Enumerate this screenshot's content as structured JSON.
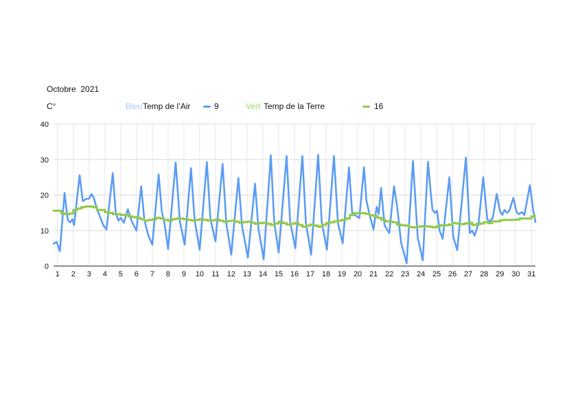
{
  "header": {
    "title": "Octobre  2021",
    "unit_label": "C°"
  },
  "legend": {
    "air": {
      "color_word": "Bleu",
      "label": "Temp de l’Air",
      "value": "9"
    },
    "terre": {
      "color_word": "Vert",
      "label": "Temp de la Terre",
      "value": "16"
    }
  },
  "colors": {
    "air_line": "#5b9cf3",
    "air_word": "#a7c9f5",
    "terre_line": "#93ca50",
    "terre_word": "#9edd66",
    "grid_horizontal": "#d9d9d9",
    "grid_vertical": "#e6e6e6",
    "axis_line": "#1a1a1a",
    "tick_text": "#111111",
    "background": "#ffffff"
  },
  "chart_data": {
    "type": "line",
    "title": "Octobre 2021",
    "xlabel": "",
    "ylabel": "C°",
    "grid": true,
    "legend_position": "top",
    "ylim": [
      0,
      40
    ],
    "y_ticks": [
      0,
      10,
      20,
      30,
      40
    ],
    "x_ticks": [
      1,
      2,
      3,
      4,
      5,
      6,
      7,
      8,
      9,
      10,
      11,
      12,
      13,
      14,
      15,
      16,
      17,
      18,
      19,
      20,
      21,
      22,
      23,
      24,
      25,
      26,
      27,
      28,
      29,
      30,
      31
    ],
    "x_domain": [
      0.75,
      31.25
    ],
    "series": [
      {
        "name": "Temp de l’Air",
        "color": "#5b9cf3",
        "width": 2.6,
        "mode": "linear",
        "points": [
          [
            0.75,
            6.3
          ],
          [
            0.95,
            6.8
          ],
          [
            1.15,
            4.2
          ],
          [
            1.45,
            20.6
          ],
          [
            1.65,
            13.0
          ],
          [
            1.8,
            12.3
          ],
          [
            1.95,
            13.2
          ],
          [
            2.05,
            11.5
          ],
          [
            2.4,
            25.6
          ],
          [
            2.6,
            18.3
          ],
          [
            2.8,
            18.9
          ],
          [
            3.0,
            19.0
          ],
          [
            3.15,
            20.3
          ],
          [
            3.3,
            19.2
          ],
          [
            3.5,
            16.0
          ],
          [
            3.7,
            13.8
          ],
          [
            3.9,
            11.5
          ],
          [
            4.1,
            10.3
          ],
          [
            4.5,
            26.2
          ],
          [
            4.68,
            15.2
          ],
          [
            4.85,
            12.8
          ],
          [
            5.0,
            13.6
          ],
          [
            5.2,
            12.2
          ],
          [
            5.45,
            16.0
          ],
          [
            5.7,
            12.6
          ],
          [
            6.0,
            10.0
          ],
          [
            6.3,
            22.5
          ],
          [
            6.5,
            13.0
          ],
          [
            6.75,
            8.6
          ],
          [
            7.0,
            6.0
          ],
          [
            7.4,
            25.8
          ],
          [
            7.6,
            15.4
          ],
          [
            7.78,
            11.8
          ],
          [
            8.0,
            4.8
          ],
          [
            8.48,
            29.2
          ],
          [
            8.75,
            12.5
          ],
          [
            9.05,
            6.0
          ],
          [
            9.45,
            27.6
          ],
          [
            9.68,
            13.0
          ],
          [
            10.0,
            4.6
          ],
          [
            10.45,
            29.3
          ],
          [
            10.68,
            13.2
          ],
          [
            11.0,
            7.0
          ],
          [
            11.45,
            28.8
          ],
          [
            11.68,
            12.2
          ],
          [
            12.0,
            3.2
          ],
          [
            12.45,
            24.8
          ],
          [
            12.68,
            11.2
          ],
          [
            13.05,
            2.4
          ],
          [
            13.5,
            23.2
          ],
          [
            13.72,
            10.5
          ],
          [
            14.05,
            1.9
          ],
          [
            14.5,
            31.2
          ],
          [
            14.72,
            12.3
          ],
          [
            15.0,
            3.8
          ],
          [
            15.5,
            31.0
          ],
          [
            15.72,
            12.6
          ],
          [
            16.05,
            5.0
          ],
          [
            16.5,
            31.0
          ],
          [
            16.72,
            12.2
          ],
          [
            17.05,
            3.2
          ],
          [
            17.5,
            31.4
          ],
          [
            17.72,
            12.6
          ],
          [
            18.05,
            4.6
          ],
          [
            18.5,
            31.0
          ],
          [
            18.75,
            12.2
          ],
          [
            19.05,
            6.4
          ],
          [
            19.45,
            27.8
          ],
          [
            19.65,
            15.0
          ],
          [
            19.85,
            14.3
          ],
          [
            20.1,
            13.5
          ],
          [
            20.4,
            27.8
          ],
          [
            20.55,
            18.6
          ],
          [
            20.75,
            14.5
          ],
          [
            21.0,
            10.3
          ],
          [
            21.2,
            16.7
          ],
          [
            21.33,
            14.7
          ],
          [
            21.48,
            22.0
          ],
          [
            21.7,
            11.5
          ],
          [
            22.0,
            9.3
          ],
          [
            22.3,
            22.5
          ],
          [
            22.5,
            16.6
          ],
          [
            22.75,
            6.5
          ],
          [
            23.1,
            0.8
          ],
          [
            23.5,
            29.6
          ],
          [
            23.8,
            8.0
          ],
          [
            24.12,
            1.6
          ],
          [
            24.45,
            29.4
          ],
          [
            24.6,
            21.8
          ],
          [
            24.73,
            16.0
          ],
          [
            24.88,
            15.0
          ],
          [
            25.02,
            15.6
          ],
          [
            25.18,
            10.0
          ],
          [
            25.38,
            7.7
          ],
          [
            25.8,
            25.0
          ],
          [
            26.05,
            8.2
          ],
          [
            26.3,
            4.5
          ],
          [
            26.85,
            30.6
          ],
          [
            27.1,
            9.3
          ],
          [
            27.25,
            10.0
          ],
          [
            27.4,
            8.6
          ],
          [
            27.65,
            12.0
          ],
          [
            27.95,
            25.0
          ],
          [
            28.2,
            13.2
          ],
          [
            28.35,
            12.5
          ],
          [
            28.55,
            13.6
          ],
          [
            28.8,
            20.3
          ],
          [
            29.0,
            15.6
          ],
          [
            29.15,
            14.4
          ],
          [
            29.3,
            15.8
          ],
          [
            29.45,
            15.0
          ],
          [
            29.6,
            15.6
          ],
          [
            29.85,
            19.2
          ],
          [
            30.05,
            15.3
          ],
          [
            30.2,
            14.6
          ],
          [
            30.4,
            15.2
          ],
          [
            30.55,
            14.4
          ],
          [
            30.9,
            22.8
          ],
          [
            31.1,
            16.0
          ],
          [
            31.25,
            12.4
          ]
        ]
      },
      {
        "name": "Temp de la Terre",
        "color": "#93ca50",
        "width": 3.2,
        "mode": "step",
        "points": [
          [
            0.75,
            15.6
          ],
          [
            1.0,
            15.6
          ],
          [
            1.25,
            14.8
          ],
          [
            1.5,
            14.6
          ],
          [
            1.75,
            14.8
          ],
          [
            2.0,
            15.8
          ],
          [
            2.25,
            16.2
          ],
          [
            2.5,
            16.6
          ],
          [
            2.75,
            16.8
          ],
          [
            3.0,
            16.8
          ],
          [
            3.25,
            16.6
          ],
          [
            3.5,
            15.8
          ],
          [
            3.75,
            15.8
          ],
          [
            4.0,
            15.2
          ],
          [
            4.25,
            15.0
          ],
          [
            4.5,
            14.6
          ],
          [
            4.75,
            14.6
          ],
          [
            5.0,
            14.4
          ],
          [
            5.25,
            14.4
          ],
          [
            5.5,
            14.0
          ],
          [
            5.75,
            13.8
          ],
          [
            6.0,
            13.6
          ],
          [
            6.25,
            13.2
          ],
          [
            6.5,
            12.8
          ],
          [
            6.75,
            13.0
          ],
          [
            7.0,
            13.2
          ],
          [
            7.25,
            13.6
          ],
          [
            7.5,
            13.4
          ],
          [
            7.75,
            13.0
          ],
          [
            8.0,
            12.8
          ],
          [
            8.25,
            13.2
          ],
          [
            8.5,
            13.4
          ],
          [
            8.75,
            13.4
          ],
          [
            9.0,
            13.2
          ],
          [
            9.25,
            13.0
          ],
          [
            9.5,
            12.8
          ],
          [
            9.75,
            13.0
          ],
          [
            10.0,
            13.2
          ],
          [
            10.25,
            13.0
          ],
          [
            10.5,
            12.8
          ],
          [
            10.75,
            12.9
          ],
          [
            11.0,
            13.1
          ],
          [
            11.25,
            12.8
          ],
          [
            11.5,
            12.5
          ],
          [
            11.75,
            12.7
          ],
          [
            12.0,
            12.8
          ],
          [
            12.25,
            12.5
          ],
          [
            12.5,
            12.2
          ],
          [
            12.75,
            12.4
          ],
          [
            13.0,
            12.5
          ],
          [
            13.25,
            12.2
          ],
          [
            13.5,
            11.9
          ],
          [
            13.75,
            12.1
          ],
          [
            14.0,
            12.2
          ],
          [
            14.25,
            11.9
          ],
          [
            14.5,
            11.6
          ],
          [
            14.75,
            12.0
          ],
          [
            15.0,
            12.5
          ],
          [
            15.25,
            12.1
          ],
          [
            15.5,
            11.7
          ],
          [
            15.75,
            11.9
          ],
          [
            16.0,
            12.1
          ],
          [
            16.25,
            11.6
          ],
          [
            16.5,
            11.1
          ],
          [
            16.75,
            11.4
          ],
          [
            17.0,
            11.7
          ],
          [
            17.25,
            11.4
          ],
          [
            17.5,
            11.1
          ],
          [
            17.75,
            11.6
          ],
          [
            18.0,
            12.1
          ],
          [
            18.25,
            12.3
          ],
          [
            18.5,
            12.6
          ],
          [
            18.75,
            12.8
          ],
          [
            19.0,
            13.0
          ],
          [
            19.25,
            13.4
          ],
          [
            19.5,
            14.4
          ],
          [
            19.75,
            14.9
          ],
          [
            20.0,
            14.9
          ],
          [
            20.25,
            14.9
          ],
          [
            20.5,
            14.7
          ],
          [
            20.75,
            14.3
          ],
          [
            21.0,
            14.1
          ],
          [
            21.25,
            13.6
          ],
          [
            21.5,
            13.0
          ],
          [
            21.75,
            12.6
          ],
          [
            22.0,
            12.5
          ],
          [
            22.25,
            12.3
          ],
          [
            22.5,
            11.7
          ],
          [
            22.75,
            11.5
          ],
          [
            23.0,
            11.4
          ],
          [
            23.25,
            11.0
          ],
          [
            23.5,
            10.9
          ],
          [
            23.75,
            11.1
          ],
          [
            24.0,
            11.2
          ],
          [
            24.25,
            11.2
          ],
          [
            24.5,
            11.1
          ],
          [
            24.75,
            10.9
          ],
          [
            25.0,
            11.3
          ],
          [
            25.25,
            11.5
          ],
          [
            25.5,
            11.5
          ],
          [
            25.75,
            11.7
          ],
          [
            26.0,
            12.1
          ],
          [
            26.25,
            12.0
          ],
          [
            26.5,
            11.8
          ],
          [
            26.75,
            12.0
          ],
          [
            27.0,
            12.2
          ],
          [
            27.25,
            11.6
          ],
          [
            27.5,
            11.8
          ],
          [
            27.75,
            12.0
          ],
          [
            28.0,
            12.4
          ],
          [
            28.25,
            12.1
          ],
          [
            28.5,
            12.6
          ],
          [
            28.75,
            12.6
          ],
          [
            29.0,
            12.9
          ],
          [
            29.25,
            13.0
          ],
          [
            29.5,
            13.0
          ],
          [
            29.75,
            13.0
          ],
          [
            30.0,
            13.1
          ],
          [
            30.25,
            13.4
          ],
          [
            30.5,
            13.4
          ],
          [
            30.75,
            13.4
          ],
          [
            31.0,
            14.0
          ],
          [
            31.2,
            14.4
          ]
        ]
      }
    ]
  }
}
